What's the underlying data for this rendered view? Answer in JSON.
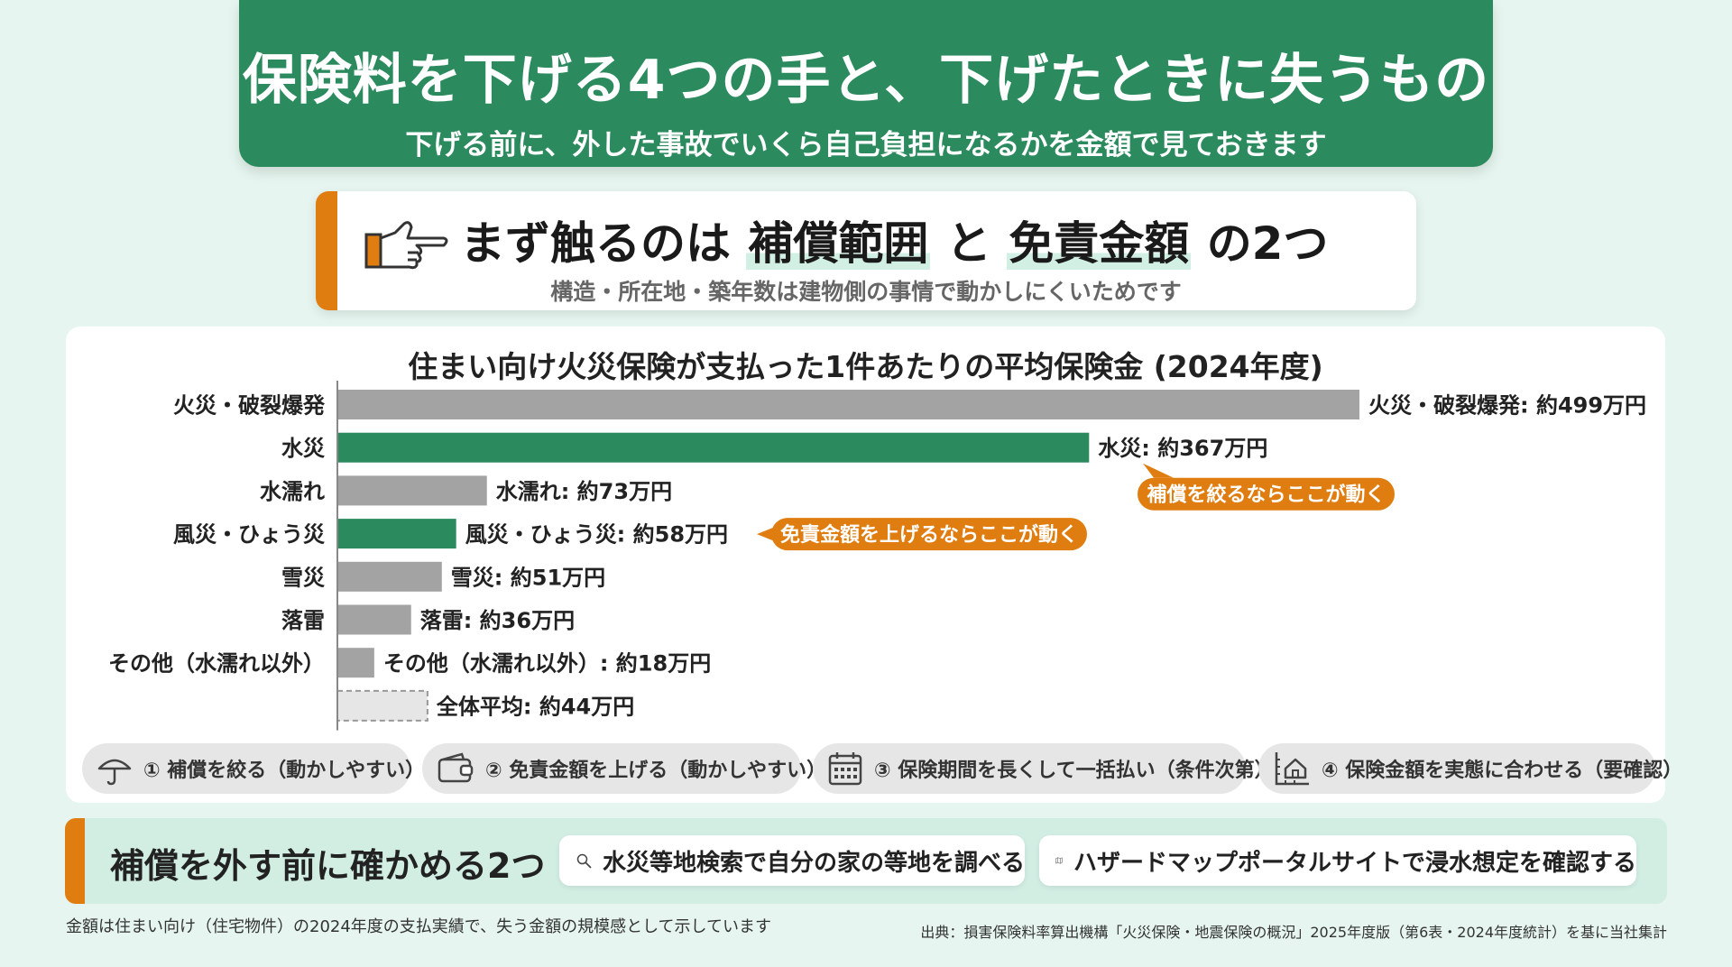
{
  "header": {
    "title": "保険料を下げる4つの手と、下げたときに失うもの",
    "subtitle": "下げる前に、外した事故でいくら自己負担になるかを金額で見ておきます"
  },
  "focus": {
    "prefix": "まず触るのは",
    "term1": "補償範囲",
    "middle": "と",
    "term2": "免責金額",
    "suffix": "の2つ",
    "note": "構造・所在地・築年数は建物側の事情で動かしにくいためです",
    "icon": "pointing-hand-icon"
  },
  "chart_data": {
    "type": "bar",
    "orientation": "horizontal",
    "title": "住まい向け火災保険が支払った1件あたりの平均保険金 (2024年度)",
    "unit": "万円",
    "xlim": [
      0,
      499
    ],
    "categories": [
      "火災・破裂爆発",
      "水災",
      "水濡れ",
      "風災・ひょう災",
      "雪災",
      "落雷",
      "その他（水濡れ以外）",
      ""
    ],
    "values": [
      499,
      367,
      73,
      58,
      51,
      36,
      18,
      44
    ],
    "value_labels": [
      "火災・破裂爆発: 約499万円",
      "水災: 約367万円",
      "水濡れ: 約73万円",
      "風災・ひょう災: 約58万円",
      "雪災: 約51万円",
      "落雷: 約36万円",
      "その他（水濡れ以外）: 約18万円",
      "全体平均: 約44万円"
    ],
    "bar_styles": [
      "gray",
      "green",
      "gray",
      "green",
      "gray",
      "gray",
      "gray",
      "dashed"
    ],
    "colors": {
      "gray": "#a3a3a3",
      "green": "#2b8a5e",
      "dashed_fill": "#e6e6e6",
      "dashed_stroke": "#999999",
      "axis": "#888888"
    },
    "annotations": [
      {
        "text": "補償を絞るならここが動く",
        "target_index": 1,
        "color": "#e07d10",
        "pointer": "up"
      },
      {
        "text": "免責金額を上げるならここが動く",
        "target_index": 3,
        "color": "#e07d10",
        "pointer": "left"
      }
    ],
    "grid": false,
    "legend": "none"
  },
  "chips": [
    {
      "label": "① 補償を絞る（動かしやすい）",
      "icon": "umbrella-icon"
    },
    {
      "label": "② 免責金額を上げる（動かしやすい）",
      "icon": "wallet-icon"
    },
    {
      "label": "③ 保険期間を長くして一括払い（条件次第）",
      "icon": "calendar-icon"
    },
    {
      "label": "④ 保険金額を実態に合わせる（要確認）",
      "icon": "house-measure-icon"
    }
  ],
  "check": {
    "title": "補償を外す前に確かめる2つ",
    "items": [
      {
        "label": "水災等地検索で自分の家の等地を調べる",
        "icon": "search-icon"
      },
      {
        "label": "ハザードマップポータルサイトで浸水想定を確認する",
        "icon": "map-icon"
      }
    ]
  },
  "footer": {
    "note": "金額は住まい向け（住宅物件）の2024年度の支払実績で、失う金額の規模感として示しています",
    "source": "出典：損害保険料率算出機構「火災保険・地震保険の概況」2025年度版（第6表・2024年度統計）を基に当社集計"
  },
  "theme": {
    "primary": "#2b8a5e",
    "accent": "#e07d10",
    "background": "#e6f5ef"
  }
}
